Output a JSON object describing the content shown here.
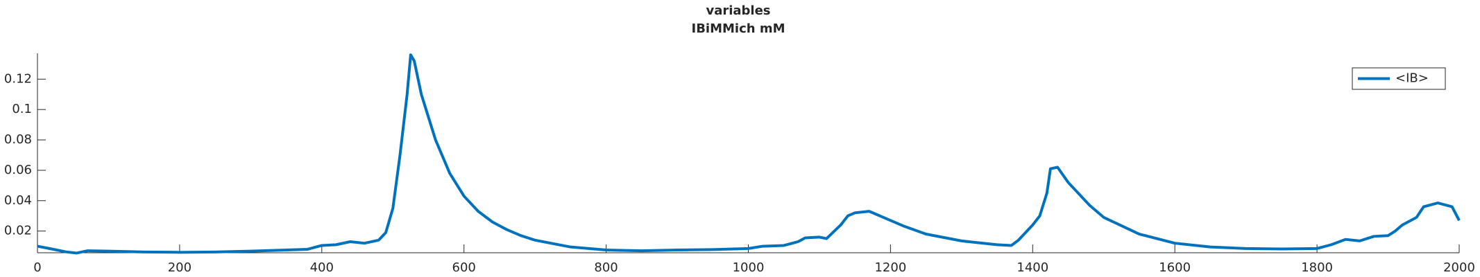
{
  "chart_data": {
    "type": "line",
    "title": "variables",
    "subtitle": "IBiMMich mM",
    "x": [
      0,
      20,
      40,
      55,
      70,
      100,
      150,
      200,
      250,
      300,
      350,
      380,
      400,
      420,
      440,
      460,
      480,
      490,
      500,
      510,
      520,
      525,
      530,
      540,
      560,
      580,
      600,
      620,
      640,
      660,
      680,
      700,
      750,
      800,
      850,
      900,
      950,
      1000,
      1020,
      1050,
      1070,
      1080,
      1100,
      1110,
      1130,
      1140,
      1150,
      1170,
      1180,
      1200,
      1220,
      1250,
      1300,
      1350,
      1370,
      1380,
      1400,
      1410,
      1420,
      1425,
      1435,
      1450,
      1480,
      1500,
      1550,
      1600,
      1650,
      1700,
      1750,
      1800,
      1820,
      1840,
      1860,
      1880,
      1900,
      1910,
      1920,
      1940,
      1950,
      1970,
      1990,
      2000
    ],
    "series": [
      {
        "name": "<IB>",
        "color": "#0072bd",
        "values": [
          0.01,
          0.0082,
          0.0063,
          0.0055,
          0.007,
          0.0068,
          0.0062,
          0.006,
          0.0062,
          0.0068,
          0.0075,
          0.008,
          0.0105,
          0.011,
          0.013,
          0.012,
          0.014,
          0.019,
          0.035,
          0.07,
          0.11,
          0.136,
          0.132,
          0.11,
          0.08,
          0.058,
          0.043,
          0.033,
          0.026,
          0.021,
          0.017,
          0.014,
          0.0095,
          0.0075,
          0.007,
          0.0075,
          0.0078,
          0.0085,
          0.01,
          0.0105,
          0.013,
          0.0155,
          0.016,
          0.015,
          0.024,
          0.03,
          0.032,
          0.033,
          0.031,
          0.027,
          0.023,
          0.018,
          0.0135,
          0.011,
          0.0105,
          0.014,
          0.024,
          0.03,
          0.045,
          0.061,
          0.062,
          0.052,
          0.037,
          0.029,
          0.018,
          0.012,
          0.0095,
          0.0085,
          0.0082,
          0.0085,
          0.011,
          0.0145,
          0.0135,
          0.0165,
          0.017,
          0.02,
          0.024,
          0.029,
          0.036,
          0.0385,
          0.036,
          0.027
        ]
      }
    ],
    "xlim": [
      0,
      2000
    ],
    "xticks": [
      0,
      200,
      400,
      600,
      800,
      1000,
      1200,
      1400,
      1600,
      1800,
      2000
    ],
    "ylim": [
      0.0057,
      0.137
    ],
    "yticks": [
      0.02,
      0.04,
      0.06,
      0.08,
      0.1,
      0.12
    ],
    "legend": "upper-right"
  }
}
